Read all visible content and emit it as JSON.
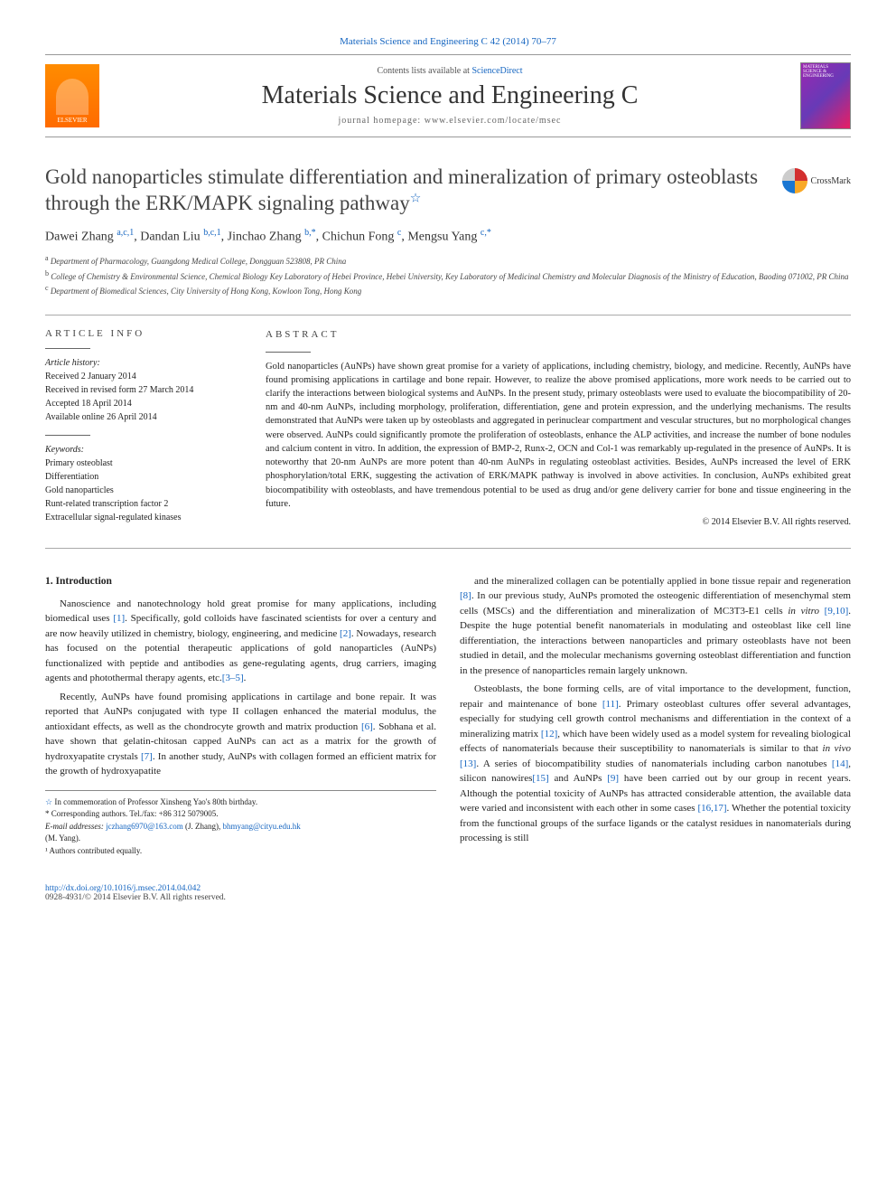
{
  "top_link": "Materials Science and Engineering C 42 (2014) 70–77",
  "header": {
    "contents_prefix": "Contents lists available at ",
    "contents_link": "ScienceDirect",
    "journal_name": "Materials Science and Engineering C",
    "homepage_label": "journal homepage: ",
    "homepage_url": "www.elsevier.com/locate/msec",
    "publisher_name": "ELSEVIER",
    "cover_text": "MATERIALS SCIENCE & ENGINEERING"
  },
  "crossmark": "CrossMark",
  "title": "Gold nanoparticles stimulate differentiation and mineralization of primary osteoblasts through the ERK/MAPK signaling pathway",
  "title_star": "☆",
  "authors_html": "Dawei Zhang <sup class='auth-link'>a,c,1</sup>, Dandan Liu <sup class='auth-link'>b,c,1</sup>, Jinchao Zhang <sup class='auth-link'>b,*</sup>, Chichun Fong <sup class='auth-link'>c</sup>, Mengsu Yang <sup class='auth-link'>c,*</sup>",
  "affiliations": {
    "a": "Department of Pharmacology, Guangdong Medical College, Dongguan 523808, PR China",
    "b": "College of Chemistry & Environmental Science, Chemical Biology Key Laboratory of Hebei Province, Hebei University, Key Laboratory of Medicinal Chemistry and Molecular Diagnosis of the Ministry of Education, Baoding 071002, PR China",
    "c": "Department of Biomedical Sciences, City University of Hong Kong, Kowloon Tong, Hong Kong"
  },
  "article_info": {
    "heading": "article info",
    "history_label": "Article history:",
    "received": "Received 2 January 2014",
    "revised": "Received in revised form 27 March 2014",
    "accepted": "Accepted 18 April 2014",
    "online": "Available online 26 April 2014",
    "keywords_label": "Keywords:",
    "keywords": [
      "Primary osteoblast",
      "Differentiation",
      "Gold nanoparticles",
      "Runt-related transcription factor 2",
      "Extracellular signal-regulated kinases"
    ]
  },
  "abstract": {
    "heading": "abstract",
    "text": "Gold nanoparticles (AuNPs) have shown great promise for a variety of applications, including chemistry, biology, and medicine. Recently, AuNPs have found promising applications in cartilage and bone repair. However, to realize the above promised applications, more work needs to be carried out to clarify the interactions between biological systems and AuNPs. In the present study, primary osteoblasts were used to evaluate the biocompatibility of 20-nm and 40-nm AuNPs, including morphology, proliferation, differentiation, gene and protein expression, and the underlying mechanisms. The results demonstrated that AuNPs were taken up by osteoblasts and aggregated in perinuclear compartment and vescular structures, but no morphological changes were observed. AuNPs could significantly promote the proliferation of osteoblasts, enhance the ALP activities, and increase the number of bone nodules and calcium content in vitro. In addition, the expression of BMP-2, Runx-2, OCN and Col-1 was remarkably up-regulated in the presence of AuNPs. It is noteworthy that 20-nm AuNPs are more potent than 40-nm AuNPs in regulating osteoblast activities. Besides, AuNPs increased the level of ERK phosphorylation/total ERK, suggesting the activation of ERK/MAPK pathway is involved in above activities. In conclusion, AuNPs exhibited great biocompatibility with osteoblasts, and have tremendous potential to be used as drug and/or gene delivery carrier for bone and tissue engineering in the future.",
    "copyright": "© 2014 Elsevier B.V. All rights reserved."
  },
  "section1": {
    "heading": "1. Introduction",
    "p1_a": "Nanoscience and nanotechnology hold great promise for many applications, including biomedical uses ",
    "p1_ref1": "[1]",
    "p1_b": ". Specifically, gold colloids have fascinated scientists for over a century and are now heavily utilized in chemistry, biology, engineering, and medicine ",
    "p1_ref2": "[2]",
    "p1_c": ". Nowadays, research has focused on the potential therapeutic applications of gold nanoparticles (AuNPs) functionalized with peptide and antibodies as gene-regulating agents, drug carriers, imaging agents and photothermal therapy agents, etc.",
    "p1_ref3": "[3–5]",
    "p1_d": ".",
    "p2_a": "Recently, AuNPs have found promising applications in cartilage and bone repair. It was reported that AuNPs conjugated with type II collagen enhanced the material modulus, the antioxidant effects, as well as the chondrocyte growth and matrix production ",
    "p2_ref1": "[6]",
    "p2_b": ". Sobhana et al. have shown that gelatin-chitosan capped AuNPs can act as a matrix for the growth of hydroxyapatite crystals ",
    "p2_ref2": "[7]",
    "p2_c": ". In another study, AuNPs with collagen formed an efficient matrix for the growth of hydroxyapatite",
    "p3_a": "and the mineralized collagen can be potentially applied in bone tissue repair and regeneration ",
    "p3_ref1": "[8]",
    "p3_b": ". In our previous study, AuNPs promoted the osteogenic differentiation of mesenchymal stem cells (MSCs) and the differentiation and mineralization of MC3T3-E1 cells ",
    "p3_italic": "in vitro",
    "p3_ref2": " [9,10]",
    "p3_c": ". Despite the huge potential benefit nanomaterials in modulating and osteoblast like cell line differentiation, the interactions between nanoparticles and primary osteoblasts have not been studied in detail, and the molecular mechanisms governing osteoblast differentiation and function in the presence of nanoparticles remain largely unknown.",
    "p4_a": "Osteoblasts, the bone forming cells, are of vital importance to the development, function, repair and maintenance of bone ",
    "p4_ref1": "[11]",
    "p4_b": ". Primary osteoblast cultures offer several advantages, especially for studying cell growth control mechanisms and differentiation in the context of a mineralizing matrix ",
    "p4_ref2": "[12]",
    "p4_c": ", which have been widely used as a model system for revealing biological effects of nanomaterials because their susceptibility to nanomaterials is similar to that ",
    "p4_italic": "in vivo",
    "p4_ref3": " [13]",
    "p4_d": ". A series of biocompatibility studies of nanomaterials including carbon nanotubes ",
    "p4_ref4": "[14]",
    "p4_e": ", silicon nanowires",
    "p4_ref5": "[15]",
    "p4_f": " and AuNPs ",
    "p4_ref6": "[9]",
    "p4_g": " have been carried out by our group in recent years. Although the potential toxicity of AuNPs has attracted considerable attention, the available data were varied and inconsistent with each other in some cases ",
    "p4_ref7": "[16,17]",
    "p4_h": ". Whether the potential toxicity from the functional groups of the surface ligands or the catalyst residues in nanomaterials during processing is still"
  },
  "footnotes": {
    "star": "☆  In commemoration of Professor Xinsheng Yao's 80th birthday.",
    "corr": "*  Corresponding authors. Tel./fax: +86 312 5079005.",
    "email_label": "E-mail addresses: ",
    "email1": "jczhang6970@163.com",
    "email1_who": " (J. Zhang), ",
    "email2": "bhmyang@cityu.edu.hk",
    "email2_who": "(M. Yang).",
    "equal": "¹  Authors contributed equally."
  },
  "footer": {
    "doi": "http://dx.doi.org/10.1016/j.msec.2014.04.042",
    "issn_copy": "0928-4931/© 2014 Elsevier B.V. All rights reserved."
  }
}
